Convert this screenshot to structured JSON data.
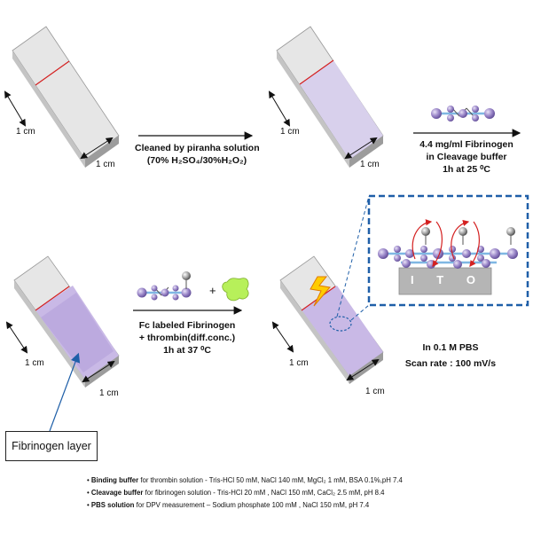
{
  "dims": {
    "s1_h": "1 cm",
    "s1_w": "1 cm",
    "s2_h": "1 cm",
    "s2_w": "1 cm",
    "s3_h": "1 cm",
    "s3_w": "1 cm",
    "s4_h": "1 cm",
    "s4_w": "1 cm"
  },
  "step1": {
    "line1": "Cleaned by piranha solution",
    "line2": "(70% H₂SO₄/30%H₂O₂)"
  },
  "step2": {
    "line1": "4.4 mg/ml Fibrinogen",
    "line2": "in Cleavage buffer",
    "line3": "1h at 25 ⁰C"
  },
  "step3": {
    "line1": "Fc labeled Fibrinogen",
    "line2": "+ thrombin(diff.conc.)",
    "line3": "1h at 37 ⁰C"
  },
  "plus": "+",
  "inset": {
    "electrode": "I T O"
  },
  "measure": {
    "line1": "In 0.1 M PBS",
    "line2": "Scan rate : 100 mV/s"
  },
  "callout": {
    "label": "Fibrinogen layer"
  },
  "notes": [
    {
      "bold": "Binding buffer",
      "rest": " for thrombin solution - Tris-HCl 50 mM, NaCl 140 mM, MgCl₂ 1 mM, BSA 0.1%,pH 7.4"
    },
    {
      "bold": "Cleavage buffer",
      "rest": " for fibrinogen solution - Tris-HCl 20 mM , NaCl 150 mM, CaCl₂ 2.5 mM, pH 8.4"
    },
    {
      "bold": "PBS solution",
      "rest": " for DPV measurement – Sodium phosphate 100 mM , NaCl 150 mM, pH 7.4"
    }
  ],
  "colors": {
    "slide_top": "#e4e4e4",
    "slide_side": "#b8b8b8",
    "red_line": "#d42020",
    "fibrinogen_film": "#d6cdea",
    "sphere": "#9a86c8",
    "sphere_dark": "#5e4a94",
    "link_blue": "#7fb7e3",
    "dashed_box": "#1f5fa8",
    "ito": "#b5b5b5",
    "thrombin": "#b7f05a",
    "bolt": "#ffcc00",
    "callout_arrow": "#1f5fa8"
  }
}
